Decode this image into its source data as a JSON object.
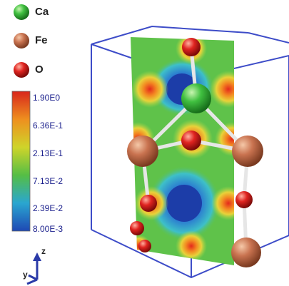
{
  "legend": [
    {
      "label": "Ca",
      "color": "#35b43a",
      "icon": "ca-atom-icon"
    },
    {
      "label": "Fe",
      "color": "#c46f4e",
      "icon": "fe-atom-icon"
    },
    {
      "label": "O",
      "color": "#d82020",
      "icon": "o-atom-icon"
    }
  ],
  "colorbar": {
    "labels": [
      "1.90E0",
      "6.36E-1",
      "2.13E-1",
      "7.13E-2",
      "2.39E-2",
      "8.00E-3"
    ],
    "colors": [
      "#d8261c",
      "#ee8f1f",
      "#cfd42a",
      "#55be45",
      "#2aa6d0",
      "#1e48b4"
    ]
  },
  "axes": {
    "z": "z",
    "y": "y"
  },
  "colors": {
    "box": "#3d4cc8",
    "bond": "#e6e6e6"
  }
}
